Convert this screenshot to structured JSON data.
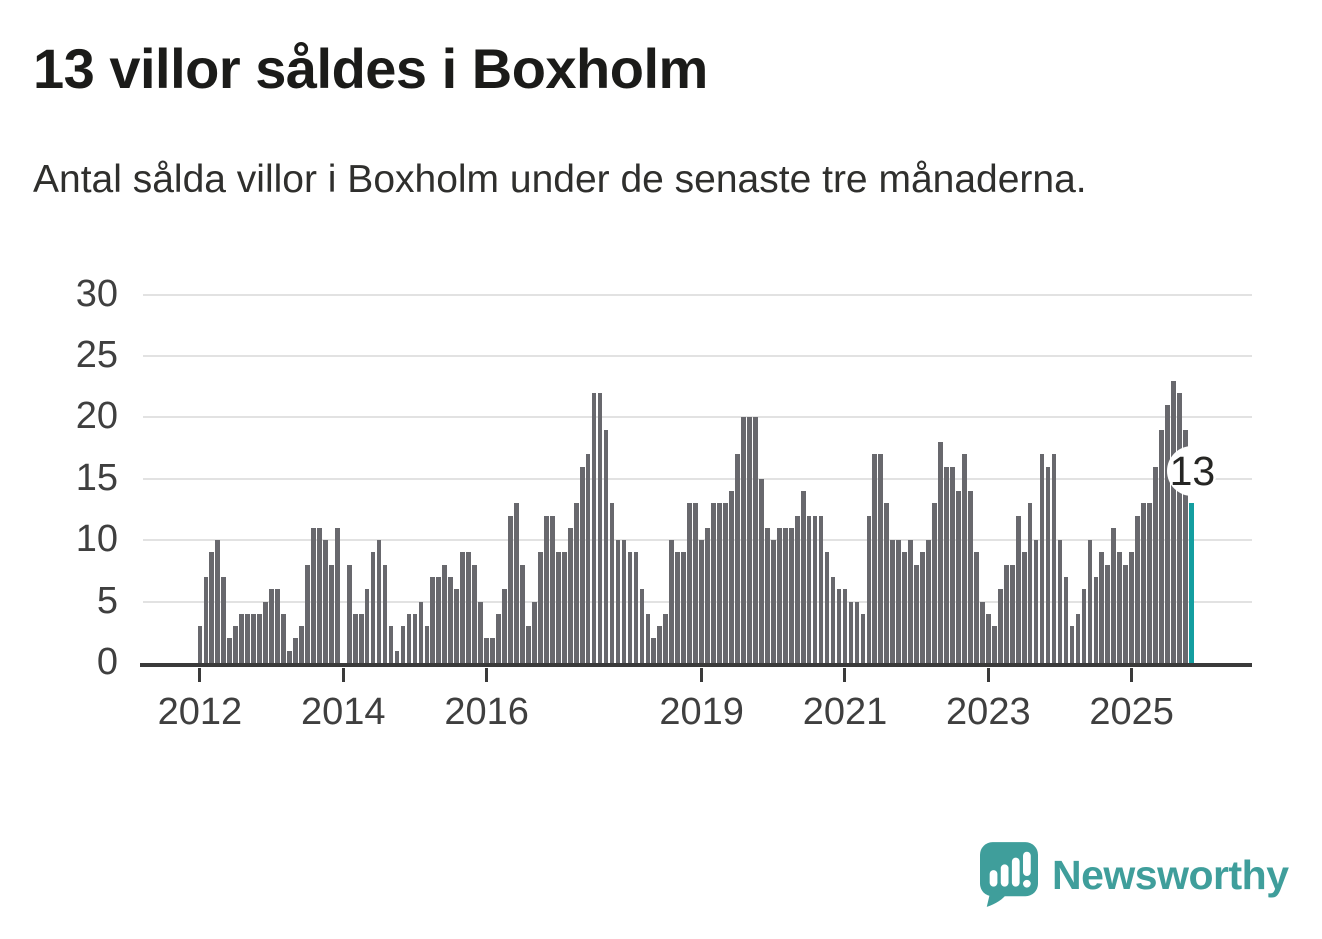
{
  "header": {
    "title": "13 villor såldes i Boxholm",
    "subtitle": "Antal sålda villor i Boxholm under de senaste tre månaderna."
  },
  "chart_data": {
    "type": "bar",
    "title": "13 villor såldes i Boxholm",
    "subtitle": "Antal sålda villor i Boxholm under de senaste tre månaderna.",
    "xlabel": "",
    "ylabel": "",
    "x_start": "2012-01",
    "x_frequency": "monthly-rolling-3-month-sum",
    "values": [
      3,
      7,
      9,
      10,
      7,
      2,
      3,
      4,
      4,
      4,
      4,
      5,
      6,
      6,
      4,
      1,
      2,
      3,
      8,
      11,
      11,
      10,
      8,
      11,
      0,
      8,
      4,
      4,
      6,
      9,
      10,
      8,
      3,
      1,
      3,
      4,
      4,
      5,
      3,
      7,
      7,
      8,
      7,
      6,
      9,
      9,
      8,
      5,
      2,
      2,
      4,
      6,
      12,
      13,
      8,
      3,
      5,
      9,
      12,
      12,
      9,
      9,
      11,
      13,
      16,
      17,
      22,
      22,
      19,
      13,
      10,
      10,
      9,
      9,
      6,
      4,
      2,
      3,
      4,
      10,
      9,
      9,
      13,
      13,
      10,
      11,
      13,
      13,
      13,
      14,
      17,
      20,
      20,
      20,
      15,
      11,
      10,
      11,
      11,
      11,
      12,
      14,
      12,
      12,
      12,
      9,
      7,
      6,
      6,
      5,
      5,
      4,
      12,
      17,
      17,
      13,
      10,
      10,
      9,
      10,
      8,
      9,
      10,
      13,
      18,
      16,
      16,
      14,
      17,
      14,
      9,
      5,
      4,
      3,
      6,
      8,
      8,
      12,
      9,
      13,
      10,
      17,
      16,
      17,
      10,
      7,
      3,
      4,
      6,
      10,
      7,
      9,
      8,
      11,
      9,
      8,
      9,
      12,
      13,
      13,
      16,
      19,
      21,
      23,
      22,
      19,
      13
    ],
    "last_value_annotation": "13",
    "ylim": [
      0,
      30
    ],
    "yticks": [
      0,
      5,
      10,
      15,
      20,
      25,
      30
    ],
    "xticks": [
      2012,
      2014,
      2016,
      2019,
      2021,
      2023,
      2025
    ],
    "grid": true,
    "legend": "none",
    "bar_color": "#68686d",
    "highlight_color": "#149ea0"
  },
  "footer": {
    "brand": "Newsworthy",
    "brand_color": "#3f9e9b",
    "logo_icon": "speech-bubble-bar-chart-icon"
  }
}
